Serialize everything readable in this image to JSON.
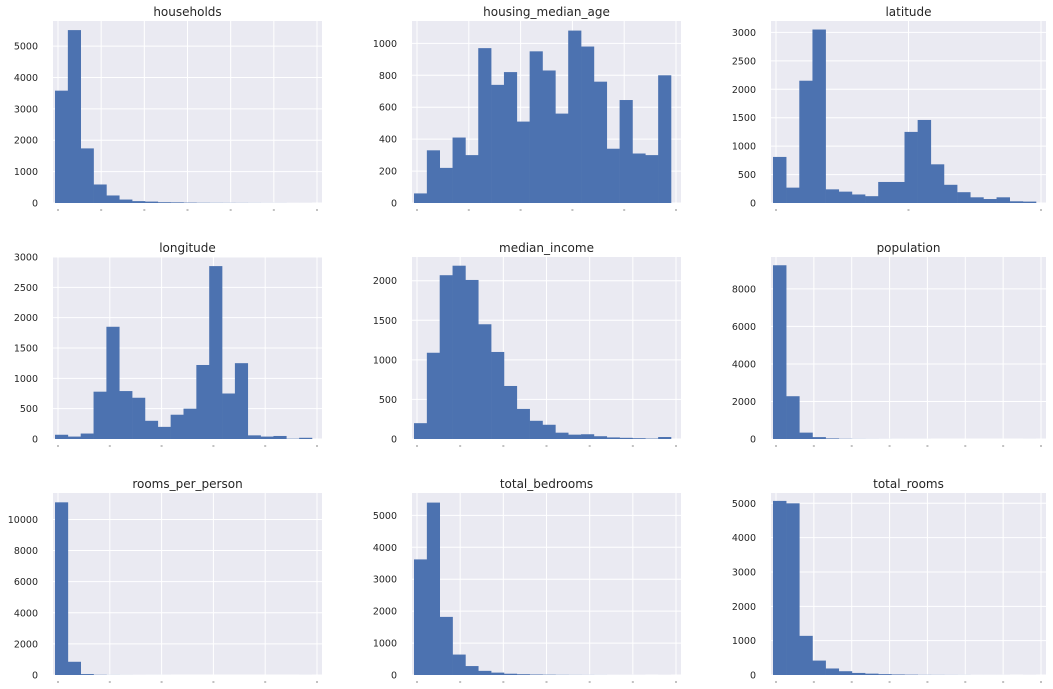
{
  "figure": {
    "type": "histogram-grid",
    "bar_color": "#4c72b0",
    "background_color": "#eaeaf2"
  },
  "chart_data": [
    {
      "type": "bar",
      "title": "households",
      "bins": 20,
      "values": [
        3580,
        5510,
        1740,
        590,
        240,
        110,
        60,
        45,
        25,
        20,
        12,
        8,
        6,
        5,
        4,
        3,
        2,
        2,
        1,
        1
      ],
      "ylim": [
        0,
        5800
      ],
      "yticks": [
        0,
        1000,
        2000,
        3000,
        4000,
        5000
      ],
      "ytick_labels": [
        "0",
        "1000",
        "2000",
        "3000",
        "4000",
        "5000"
      ],
      "xticks_count": 7
    },
    {
      "type": "bar",
      "title": "housing_median_age",
      "bins": 20,
      "values": [
        60,
        330,
        220,
        410,
        300,
        970,
        740,
        820,
        510,
        950,
        830,
        560,
        1080,
        980,
        760,
        340,
        645,
        310,
        300,
        800
      ],
      "ylim": [
        0,
        1140
      ],
      "yticks": [
        0,
        200,
        400,
        600,
        800,
        1000
      ],
      "ytick_labels": [
        "0",
        "200",
        "400",
        "600",
        "800",
        "1000"
      ],
      "xticks_count": 6
    },
    {
      "type": "bar",
      "title": "latitude",
      "bins": 20,
      "values": [
        810,
        270,
        2150,
        3050,
        240,
        200,
        150,
        120,
        370,
        370,
        1250,
        1460,
        680,
        320,
        190,
        100,
        70,
        100,
        30,
        25
      ],
      "ylim": [
        0,
        3200
      ],
      "yticks": [
        0,
        500,
        1000,
        1500,
        2000,
        2500,
        3000
      ],
      "ytick_labels": [
        "0",
        "500",
        "1000",
        "1500",
        "2000",
        "2500",
        "3000"
      ],
      "xticks_count": 3
    },
    {
      "type": "bar",
      "title": "longitude",
      "bins": 20,
      "values": [
        70,
        40,
        90,
        780,
        1850,
        790,
        680,
        300,
        200,
        400,
        500,
        1220,
        2850,
        750,
        1250,
        60,
        40,
        50,
        5,
        20
      ],
      "ylim": [
        0,
        3000
      ],
      "yticks": [
        0,
        500,
        1000,
        1500,
        2000,
        2500,
        3000
      ],
      "ytick_labels": [
        "0",
        "500",
        "1000",
        "1500",
        "2000",
        "2500",
        "3000"
      ],
      "xticks_count": 6
    },
    {
      "type": "bar",
      "title": "median_income",
      "bins": 20,
      "values": [
        200,
        1090,
        2070,
        2190,
        2010,
        1450,
        1100,
        670,
        380,
        230,
        180,
        80,
        55,
        60,
        35,
        20,
        15,
        10,
        5,
        25
      ],
      "ylim": [
        0,
        2300
      ],
      "yticks": [
        0,
        500,
        1000,
        1500,
        2000
      ],
      "ytick_labels": [
        "0",
        "500",
        "1000",
        "1500",
        "2000"
      ],
      "xticks_count": 7
    },
    {
      "type": "bar",
      "title": "population",
      "bins": 20,
      "values": [
        9260,
        2280,
        340,
        100,
        30,
        12,
        5,
        3,
        2,
        1,
        1,
        1,
        0,
        0,
        0,
        0,
        0,
        0,
        0,
        1
      ],
      "ylim": [
        0,
        9700
      ],
      "yticks": [
        0,
        2000,
        4000,
        6000,
        8000
      ],
      "ytick_labels": [
        "0",
        "2000",
        "4000",
        "6000",
        "8000"
      ],
      "xticks_count": 8
    },
    {
      "type": "bar",
      "title": "rooms_per_person",
      "bins": 20,
      "values": [
        11100,
        850,
        60,
        15,
        5,
        3,
        2,
        1,
        1,
        0,
        0,
        0,
        0,
        0,
        0,
        0,
        0,
        0,
        0,
        1
      ],
      "ylim": [
        0,
        11700
      ],
      "yticks": [
        0,
        2000,
        4000,
        6000,
        8000,
        10000
      ],
      "ytick_labels": [
        "0",
        "2000",
        "4000",
        "6000",
        "8000",
        "10000"
      ],
      "xticks_count": 6
    },
    {
      "type": "bar",
      "title": "total_bedrooms",
      "bins": 20,
      "values": [
        3620,
        5400,
        1820,
        640,
        280,
        130,
        75,
        40,
        25,
        15,
        10,
        6,
        4,
        3,
        2,
        1,
        1,
        1,
        0,
        1
      ],
      "ylim": [
        0,
        5700
      ],
      "yticks": [
        0,
        1000,
        2000,
        3000,
        4000,
        5000
      ],
      "ytick_labels": [
        "0",
        "1000",
        "2000",
        "3000",
        "4000",
        "5000"
      ],
      "xticks_count": 7
    },
    {
      "type": "bar",
      "title": "total_rooms",
      "bins": 20,
      "values": [
        5070,
        5000,
        1140,
        420,
        190,
        110,
        60,
        40,
        25,
        15,
        10,
        5,
        4,
        3,
        2,
        1,
        1,
        1,
        0,
        1
      ],
      "ylim": [
        0,
        5300
      ],
      "yticks": [
        0,
        1000,
        2000,
        3000,
        4000,
        5000
      ],
      "ytick_labels": [
        "0",
        "1000",
        "2000",
        "3000",
        "4000",
        "5000"
      ],
      "xticks_count": 8
    }
  ]
}
